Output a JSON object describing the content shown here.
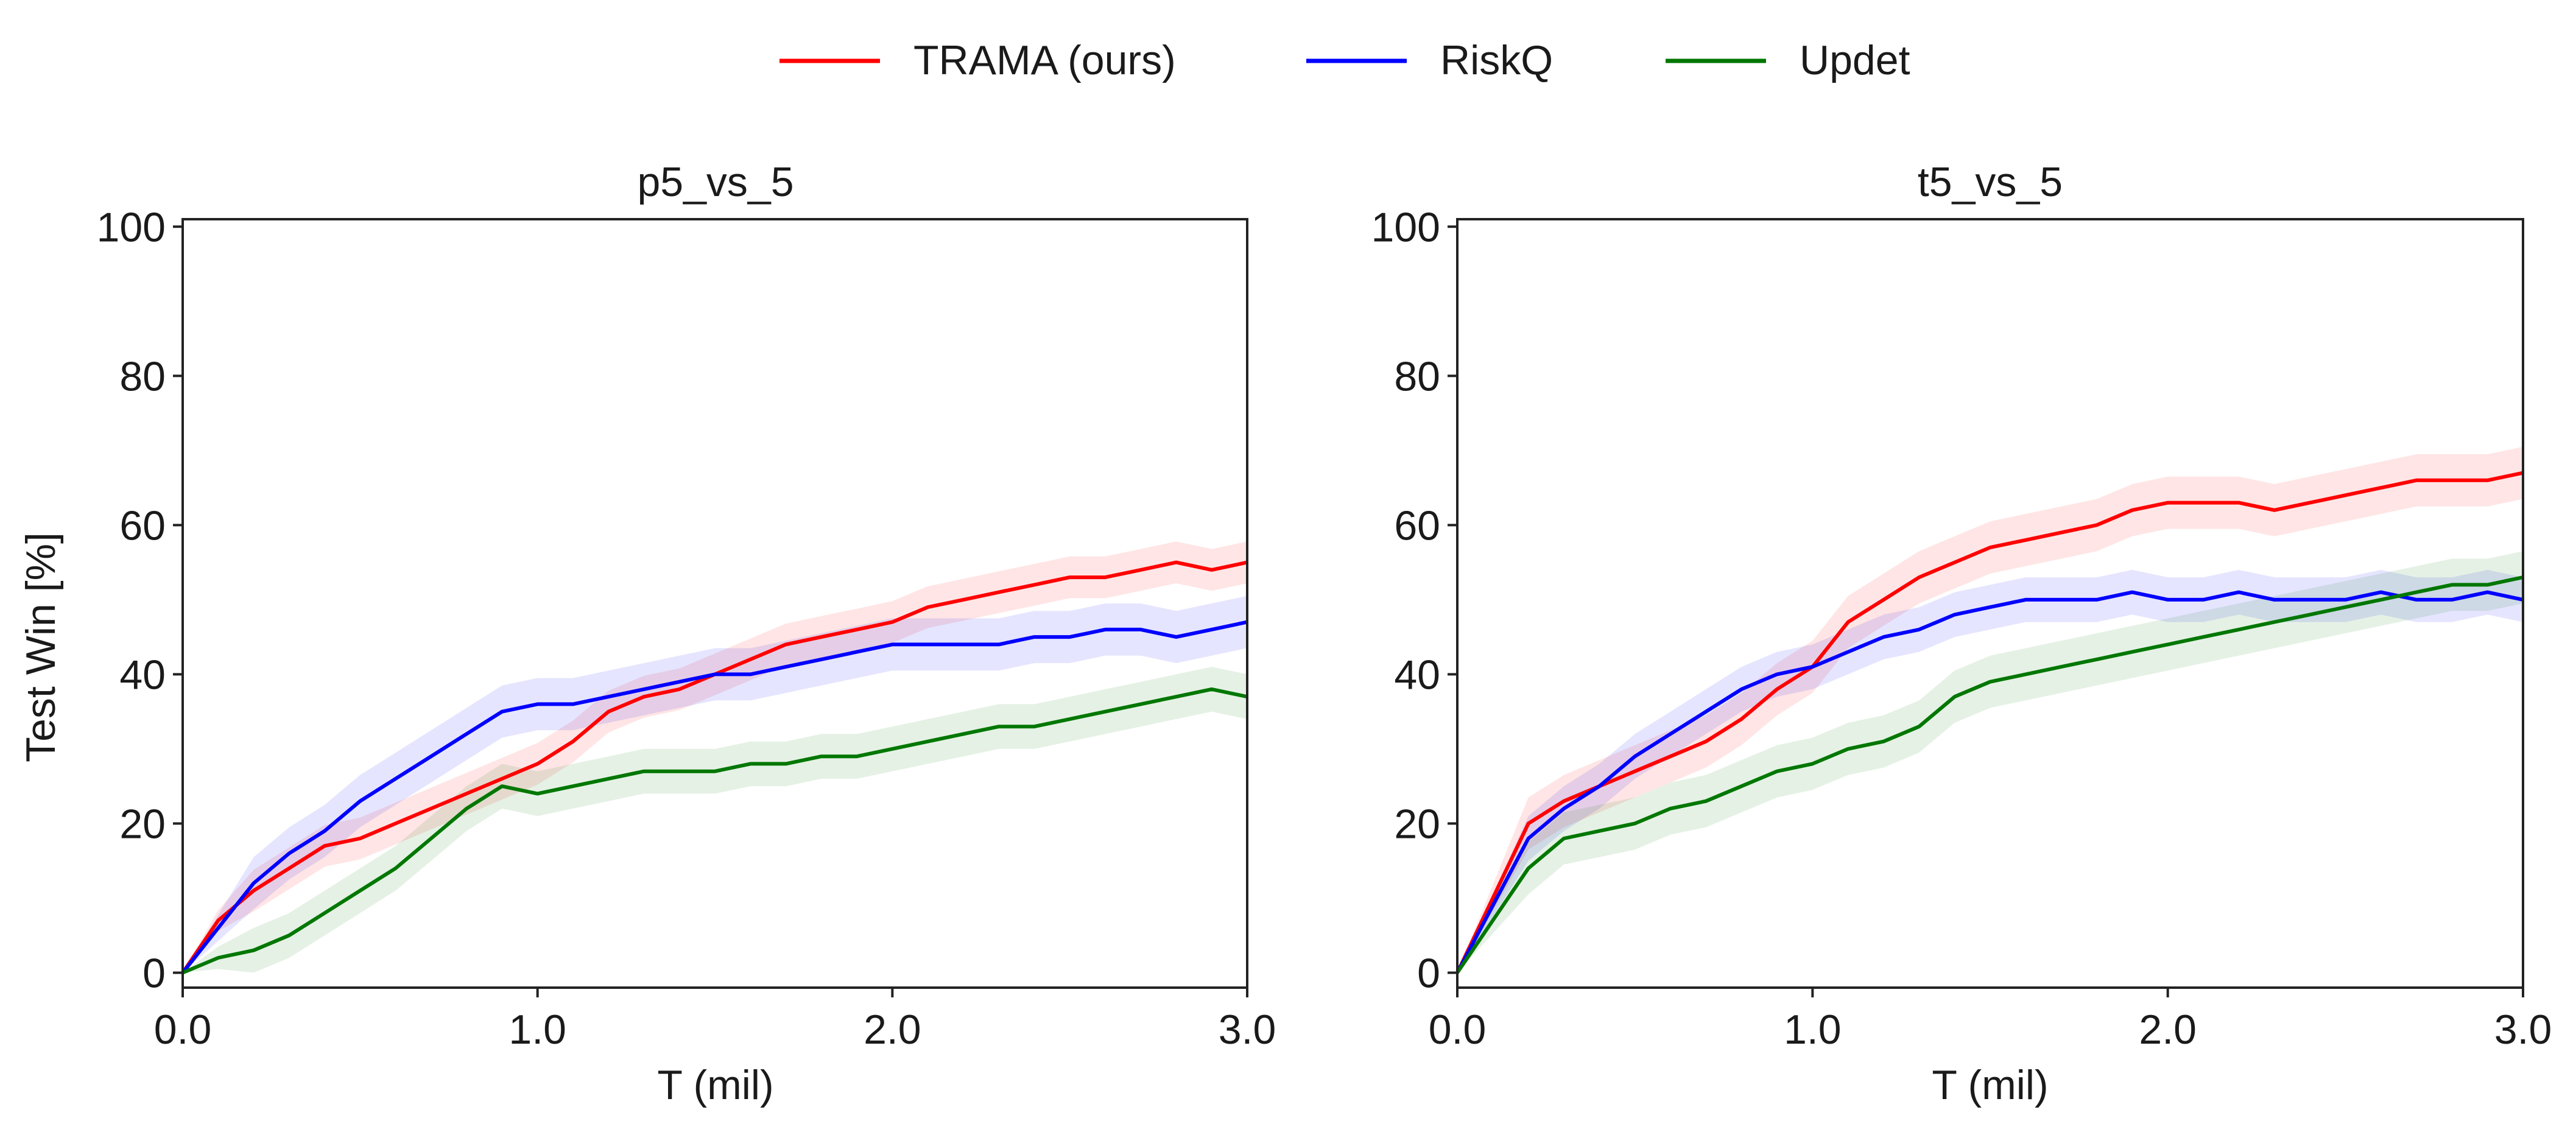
{
  "figure": {
    "legend": [
      {
        "label": "TRAMA (ours)",
        "color": "#ff0000"
      },
      {
        "label": "RiskQ",
        "color": "#0000ff"
      },
      {
        "label": "Updet",
        "color": "#007700"
      }
    ]
  },
  "chart_data": [
    {
      "type": "line",
      "title": "p5_vs_5",
      "xlabel": "T (mil)",
      "ylabel": "Test Win [%]",
      "xlim": [
        0,
        3.0
      ],
      "ylim": [
        -2,
        101
      ],
      "xticks": [
        0,
        1,
        2,
        3
      ],
      "xtick_labels": [
        "0.0",
        "1.0",
        "2.0",
        "3.0"
      ],
      "yticks": [
        0,
        20,
        40,
        60,
        80,
        100
      ],
      "ytick_labels": [
        "0",
        "20",
        "40",
        "60",
        "80",
        "100"
      ],
      "x": [
        0,
        0.1,
        0.2,
        0.3,
        0.4,
        0.5,
        0.6,
        0.7,
        0.8,
        0.9,
        1.0,
        1.1,
        1.2,
        1.3,
        1.4,
        1.5,
        1.6,
        1.7,
        1.8,
        1.9,
        2.0,
        2.1,
        2.2,
        2.3,
        2.4,
        2.5,
        2.6,
        2.7,
        2.8,
        2.9,
        3.0
      ],
      "series": [
        {
          "name": "TRAMA (ours)",
          "color": "#ff0000",
          "band": 2.8,
          "values": [
            0,
            7,
            11,
            14,
            17,
            18,
            20,
            22,
            24,
            26,
            28,
            31,
            35,
            37,
            38,
            40,
            42,
            44,
            45,
            46,
            47,
            49,
            50,
            51,
            52,
            53,
            53,
            54,
            55,
            54,
            55
          ]
        },
        {
          "name": "RiskQ",
          "color": "#0000ff",
          "band": 3.5,
          "values": [
            0,
            6,
            12,
            16,
            19,
            23,
            26,
            29,
            32,
            35,
            36,
            36,
            37,
            38,
            39,
            40,
            40,
            41,
            42,
            43,
            44,
            44,
            44,
            44,
            45,
            45,
            46,
            46,
            45,
            46,
            47
          ]
        },
        {
          "name": "Updet",
          "color": "#007700",
          "band": 3.0,
          "values": [
            0,
            2,
            3,
            5,
            8,
            11,
            14,
            18,
            22,
            25,
            24,
            25,
            26,
            27,
            27,
            27,
            28,
            28,
            29,
            29,
            30,
            31,
            32,
            33,
            33,
            34,
            35,
            36,
            37,
            38,
            37
          ]
        }
      ]
    },
    {
      "type": "line",
      "title": "t5_vs_5",
      "xlabel": "T (mil)",
      "ylabel": "",
      "xlim": [
        0,
        3.0
      ],
      "ylim": [
        -2,
        101
      ],
      "xticks": [
        0,
        1,
        2,
        3
      ],
      "xtick_labels": [
        "0.0",
        "1.0",
        "2.0",
        "3.0"
      ],
      "yticks": [
        0,
        20,
        40,
        60,
        80,
        100
      ],
      "ytick_labels": [
        "0",
        "20",
        "40",
        "60",
        "80",
        "100"
      ],
      "x": [
        0,
        0.1,
        0.2,
        0.3,
        0.4,
        0.5,
        0.6,
        0.7,
        0.8,
        0.9,
        1.0,
        1.1,
        1.2,
        1.3,
        1.4,
        1.5,
        1.6,
        1.7,
        1.8,
        1.9,
        2.0,
        2.1,
        2.2,
        2.3,
        2.4,
        2.5,
        2.6,
        2.7,
        2.8,
        2.9,
        3.0
      ],
      "series": [
        {
          "name": "TRAMA (ours)",
          "color": "#ff0000",
          "band": 3.5,
          "values": [
            0,
            10,
            20,
            23,
            25,
            27,
            29,
            31,
            34,
            38,
            41,
            47,
            50,
            53,
            55,
            57,
            58,
            59,
            60,
            62,
            63,
            63,
            63,
            62,
            63,
            64,
            65,
            66,
            66,
            66,
            67
          ]
        },
        {
          "name": "RiskQ",
          "color": "#0000ff",
          "band": 3.0,
          "values": [
            0,
            9,
            18,
            22,
            25,
            29,
            32,
            35,
            38,
            40,
            41,
            43,
            45,
            46,
            48,
            49,
            50,
            50,
            50,
            51,
            50,
            50,
            51,
            50,
            50,
            50,
            51,
            50,
            50,
            51,
            50
          ]
        },
        {
          "name": "Updet",
          "color": "#007700",
          "band": 3.5,
          "values": [
            0,
            7,
            14,
            18,
            19,
            20,
            22,
            23,
            25,
            27,
            28,
            30,
            31,
            33,
            37,
            39,
            40,
            41,
            42,
            43,
            44,
            45,
            46,
            47,
            48,
            49,
            50,
            51,
            52,
            52,
            53
          ]
        }
      ]
    }
  ]
}
